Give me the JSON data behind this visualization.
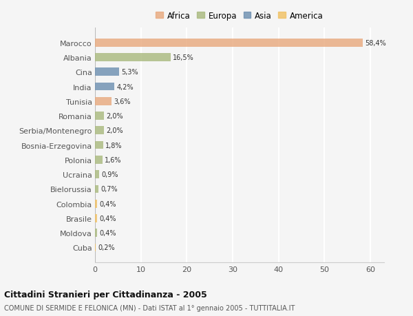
{
  "categories": [
    "Marocco",
    "Albania",
    "Cina",
    "India",
    "Tunisia",
    "Romania",
    "Serbia/Montenegro",
    "Bosnia-Erzegovina",
    "Polonia",
    "Ucraina",
    "Bielorussia",
    "Colombia",
    "Brasile",
    "Moldova",
    "Cuba"
  ],
  "values": [
    58.4,
    16.5,
    5.3,
    4.2,
    3.6,
    2.0,
    2.0,
    1.8,
    1.6,
    0.9,
    0.7,
    0.4,
    0.4,
    0.4,
    0.2
  ],
  "labels": [
    "58,4%",
    "16,5%",
    "5,3%",
    "4,2%",
    "3,6%",
    "2,0%",
    "2,0%",
    "1,8%",
    "1,6%",
    "0,9%",
    "0,7%",
    "0,4%",
    "0,4%",
    "0,4%",
    "0,2%"
  ],
  "colors": [
    "#e8a87c",
    "#a8b87c",
    "#6b8eb0",
    "#6b8eb0",
    "#e8a87c",
    "#a8b87c",
    "#a8b87c",
    "#a8b87c",
    "#a8b87c",
    "#a8b87c",
    "#a8b87c",
    "#f0c060",
    "#f0c060",
    "#a8b87c",
    "#f0c060"
  ],
  "legend_labels": [
    "Africa",
    "Europa",
    "Asia",
    "America"
  ],
  "legend_colors": [
    "#e8a87c",
    "#a8b87c",
    "#6b8eb0",
    "#f0c060"
  ],
  "title": "Cittadini Stranieri per Cittadinanza - 2005",
  "subtitle": "COMUNE DI SERMIDE E FELONICA (MN) - Dati ISTAT al 1° gennaio 2005 - TUTTITALIA.IT",
  "xlim": [
    0,
    63
  ],
  "xticks": [
    0,
    10,
    20,
    30,
    40,
    50,
    60
  ],
  "background_color": "#f5f5f5",
  "grid_color": "#ffffff",
  "bar_alpha": 0.8,
  "bar_height": 0.55
}
